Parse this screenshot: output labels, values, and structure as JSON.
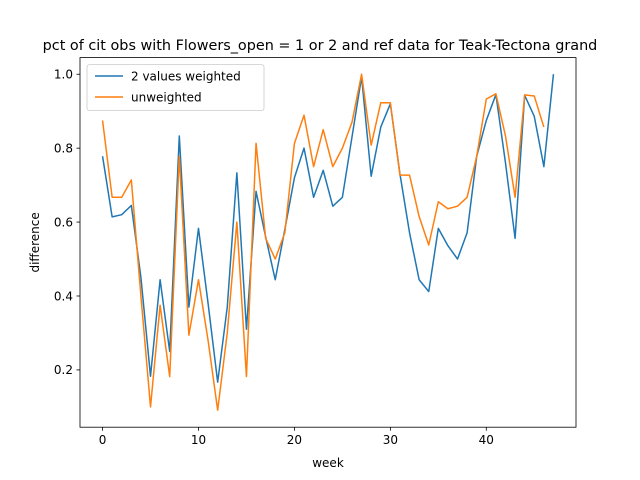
{
  "chart_data": {
    "type": "line",
    "title": "pct of cit obs with Flowers_open = 1 or 2 and ref data for Teak-Tectona grand",
    "xlabel": "week",
    "ylabel": "difference",
    "xlim": [
      -2.35,
      49.35
    ],
    "ylim": [
      0.045,
      1.045
    ],
    "xticks": [
      0,
      10,
      20,
      30,
      40
    ],
    "yticks": [
      0.2,
      0.4,
      0.6,
      0.8,
      1.0
    ],
    "xtick_labels": [
      "0",
      "10",
      "20",
      "30",
      "40"
    ],
    "ytick_labels": [
      "0.2",
      "0.4",
      "0.6",
      "0.8",
      "1.0"
    ],
    "grid": false,
    "legend_position": "top-left",
    "series": [
      {
        "name": "2 values weighted",
        "color": "#1f77b4",
        "x": [
          0,
          1,
          2,
          3,
          4,
          5,
          6,
          7,
          8,
          9,
          10,
          11,
          12,
          13,
          14,
          15,
          16,
          17,
          18,
          19,
          20,
          21,
          22,
          23,
          24,
          25,
          26,
          27,
          28,
          29,
          30,
          31,
          32,
          33,
          34,
          35,
          36,
          37,
          38,
          39,
          40,
          41,
          42,
          43,
          44,
          45,
          46,
          47
        ],
        "values": [
          0.778,
          0.614,
          0.62,
          0.645,
          0.45,
          0.183,
          0.444,
          0.25,
          0.833,
          0.37,
          0.583,
          0.38,
          0.167,
          0.37,
          0.733,
          0.31,
          0.683,
          0.56,
          0.444,
          0.58,
          0.72,
          0.8,
          0.667,
          0.74,
          0.643,
          0.667,
          0.83,
          0.993,
          0.724,
          0.857,
          0.92,
          0.73,
          0.571,
          0.444,
          0.412,
          0.583,
          0.536,
          0.5,
          0.571,
          0.778,
          0.875,
          0.945,
          0.76,
          0.556,
          0.943,
          0.886,
          0.75,
          1.0
        ]
      },
      {
        "name": "unweighted",
        "color": "#ff7f0e",
        "x": [
          0,
          1,
          2,
          3,
          4,
          5,
          6,
          7,
          8,
          9,
          10,
          11,
          12,
          13,
          14,
          15,
          16,
          17,
          18,
          19,
          20,
          21,
          22,
          23,
          24,
          25,
          26,
          27,
          28,
          29,
          30,
          31,
          32,
          33,
          34,
          35,
          36,
          37,
          38,
          39,
          40,
          41,
          42,
          43,
          44,
          45,
          46,
          47
        ],
        "values": [
          0.875,
          0.667,
          0.667,
          0.714,
          0.4,
          0.1,
          0.375,
          0.182,
          0.778,
          0.294,
          0.444,
          0.28,
          0.091,
          0.3,
          0.6,
          0.182,
          0.813,
          0.556,
          0.5,
          0.571,
          0.813,
          0.889,
          0.75,
          0.85,
          0.75,
          0.8,
          0.87,
          1.0,
          0.808,
          0.923,
          0.923,
          0.727,
          0.727,
          0.615,
          0.538,
          0.655,
          0.636,
          0.643,
          0.667,
          0.778,
          0.933,
          0.947,
          0.833,
          0.667,
          0.944,
          0.941,
          0.857,
          null
        ]
      }
    ]
  }
}
